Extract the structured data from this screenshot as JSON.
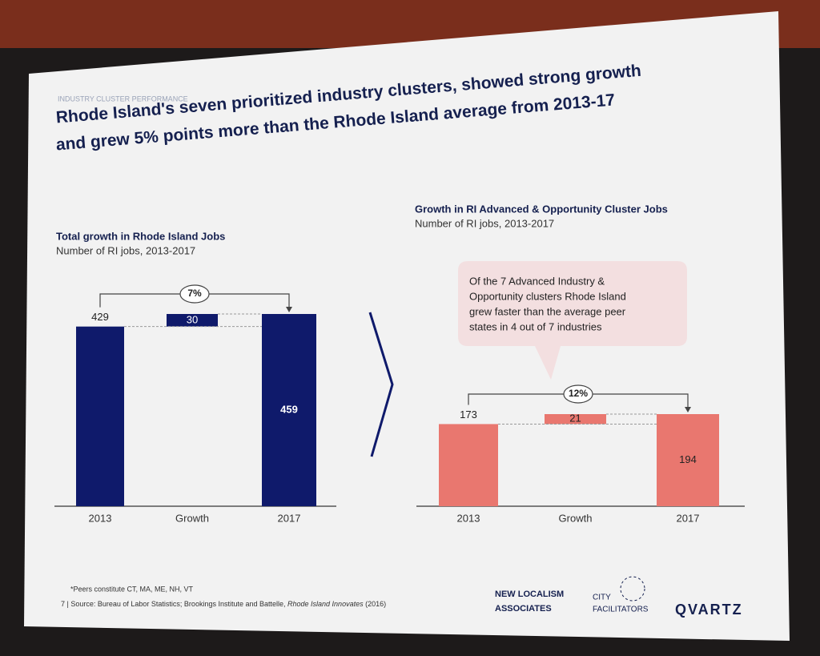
{
  "section": "INDUSTRY CLUSTER PERFORMANCE",
  "headline": [
    "Rhode Island's seven prioritized industry clusters, showed strong growth",
    "and grew 5% points more than the Rhode Island average from 2013-17"
  ],
  "chart_data": [
    {
      "type": "waterfall",
      "title": "Total growth in Rhode Island Jobs",
      "subtitle": "Number of RI jobs, 2013-2017",
      "categories": [
        "2013",
        "Growth",
        "2017"
      ],
      "values": [
        429,
        30,
        459
      ],
      "color": "#0f1a6b",
      "change_label": "7%"
    },
    {
      "type": "waterfall",
      "title": "Growth in RI Advanced & Opportunity Cluster Jobs",
      "subtitle": "Number of RI jobs, 2013-2017",
      "categories": [
        "2013",
        "Growth",
        "2017"
      ],
      "values": [
        173,
        21,
        194
      ],
      "color": "#e9776f",
      "change_label": "12%",
      "callout": [
        "Of the 7 Advanced Industry &",
        "Opportunity clusters Rhode Island",
        "grew faster than the average peer",
        "states in  4 out of 7 industries"
      ]
    }
  ],
  "footnote": "*Peers constitute CT, MA, ME, NH, VT",
  "page_number": "7",
  "source": [
    "Source: Bureau of Labor Statistics; Brookings Institute and Battelle, ",
    "Rhode Island Innovates",
    " (2016)"
  ],
  "logos": [
    "NEW LOCALISM",
    "ASSOCIATES",
    "CITY",
    "FACILITATORS",
    "QVARTZ"
  ]
}
